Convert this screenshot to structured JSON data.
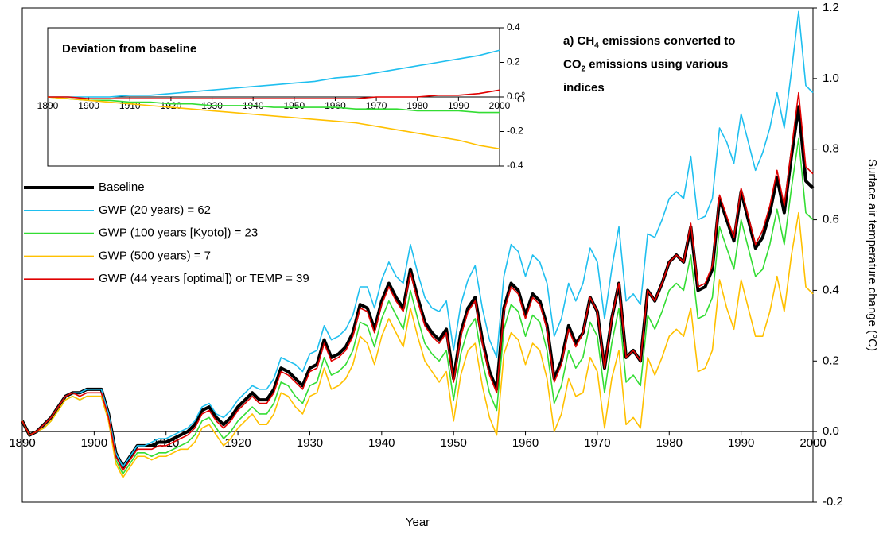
{
  "chart_data": [
    {
      "type": "line",
      "annotation": [
        [
          "a) CH",
          "4",
          " emissions converted to"
        ],
        [
          "CO",
          "2",
          " emissions using various"
        ],
        [
          "indices"
        ]
      ],
      "x_label": "Year",
      "y_label": "Surface air temperature change (°C)",
      "xlim": [
        1890,
        2000
      ],
      "xticks": [
        1890,
        1900,
        1910,
        1920,
        1930,
        1940,
        1950,
        1960,
        1970,
        1980,
        1990,
        2000
      ],
      "ylim": [
        -0.2,
        1.2
      ],
      "yticks": [
        1.2,
        {
          "value": 1,
          "label": "1.0"
        },
        0.8,
        0.6,
        0.4,
        0.2,
        {
          "value": 0,
          "label": "0.0"
        },
        -0.2
      ],
      "x": [
        1890,
        1891,
        1892,
        1893,
        1894,
        1895,
        1896,
        1897,
        1898,
        1899,
        1900,
        1901,
        1902,
        1903,
        1904,
        1905,
        1906,
        1907,
        1908,
        1909,
        1910,
        1911,
        1912,
        1913,
        1914,
        1915,
        1916,
        1917,
        1918,
        1919,
        1920,
        1921,
        1922,
        1923,
        1924,
        1925,
        1926,
        1927,
        1928,
        1929,
        1930,
        1931,
        1932,
        1933,
        1934,
        1935,
        1936,
        1937,
        1938,
        1939,
        1940,
        1941,
        1942,
        1943,
        1944,
        1945,
        1946,
        1947,
        1948,
        1949,
        1950,
        1951,
        1952,
        1953,
        1954,
        1955,
        1956,
        1957,
        1958,
        1959,
        1960,
        1961,
        1962,
        1963,
        1964,
        1965,
        1966,
        1967,
        1968,
        1969,
        1970,
        1971,
        1972,
        1973,
        1974,
        1975,
        1976,
        1977,
        1978,
        1979,
        1980,
        1981,
        1982,
        1983,
        1984,
        1985,
        1986,
        1987,
        1988,
        1989,
        1990,
        1991,
        1992,
        1993,
        1994,
        1995,
        1996,
        1997,
        1998,
        1999,
        2000
      ],
      "series": [
        {
          "name": "Baseline",
          "color": "#000000",
          "values": [
            0.03,
            -0.01,
            0.0,
            0.02,
            0.04,
            0.07,
            0.1,
            0.11,
            0.11,
            0.12,
            0.12,
            0.12,
            0.05,
            -0.06,
            -0.1,
            -0.07,
            -0.04,
            -0.04,
            -0.04,
            -0.03,
            -0.03,
            -0.02,
            -0.01,
            0.0,
            0.02,
            0.06,
            0.07,
            0.04,
            0.02,
            0.04,
            0.07,
            0.09,
            0.11,
            0.09,
            0.09,
            0.12,
            0.18,
            0.17,
            0.15,
            0.13,
            0.18,
            0.19,
            0.26,
            0.21,
            0.22,
            0.24,
            0.28,
            0.36,
            0.35,
            0.29,
            0.37,
            0.42,
            0.38,
            0.35,
            0.46,
            0.38,
            0.31,
            0.28,
            0.26,
            0.29,
            0.15,
            0.28,
            0.35,
            0.38,
            0.26,
            0.17,
            0.12,
            0.35,
            0.42,
            0.4,
            0.33,
            0.39,
            0.37,
            0.3,
            0.15,
            0.2,
            0.3,
            0.25,
            0.28,
            0.38,
            0.34,
            0.18,
            0.32,
            0.42,
            0.21,
            0.23,
            0.2,
            0.4,
            0.37,
            0.42,
            0.48,
            0.5,
            0.48,
            0.58,
            0.4,
            0.41,
            0.46,
            0.66,
            0.6,
            0.54,
            0.68,
            0.6,
            0.52,
            0.55,
            0.62,
            0.72,
            0.62,
            0.78,
            0.92,
            0.71,
            0.69
          ]
        },
        {
          "name": "GWP (20 years) = 62",
          "color": "#1fbfef",
          "values": [
            0.03,
            -0.01,
            0.0,
            0.02,
            0.04,
            0.07,
            0.1,
            0.11,
            0.11,
            0.12,
            0.12,
            0.12,
            0.05,
            -0.06,
            -0.1,
            -0.07,
            -0.04,
            -0.04,
            -0.03,
            -0.02,
            -0.02,
            -0.01,
            0.0,
            0.01,
            0.03,
            0.07,
            0.08,
            0.05,
            0.04,
            0.06,
            0.09,
            0.11,
            0.13,
            0.12,
            0.12,
            0.15,
            0.21,
            0.2,
            0.19,
            0.17,
            0.22,
            0.23,
            0.3,
            0.26,
            0.27,
            0.29,
            0.33,
            0.41,
            0.41,
            0.35,
            0.43,
            0.48,
            0.44,
            0.42,
            0.53,
            0.45,
            0.38,
            0.35,
            0.34,
            0.37,
            0.23,
            0.36,
            0.43,
            0.47,
            0.35,
            0.26,
            0.21,
            0.44,
            0.53,
            0.51,
            0.44,
            0.5,
            0.48,
            0.42,
            0.27,
            0.32,
            0.42,
            0.37,
            0.42,
            0.52,
            0.48,
            0.32,
            0.46,
            0.58,
            0.37,
            0.39,
            0.36,
            0.56,
            0.55,
            0.6,
            0.66,
            0.68,
            0.66,
            0.78,
            0.6,
            0.61,
            0.66,
            0.86,
            0.82,
            0.76,
            0.9,
            0.82,
            0.74,
            0.79,
            0.86,
            0.96,
            0.86,
            1.02,
            1.19,
            0.98,
            0.96
          ]
        },
        {
          "name": "GWP (100 years [Kyoto]) = 23",
          "color": "#33dd33",
          "values": [
            0.03,
            -0.01,
            0.0,
            0.01,
            0.03,
            0.06,
            0.09,
            0.1,
            0.09,
            0.1,
            0.1,
            0.1,
            0.03,
            -0.08,
            -0.12,
            -0.09,
            -0.06,
            -0.06,
            -0.07,
            -0.06,
            -0.06,
            -0.05,
            -0.04,
            -0.03,
            -0.01,
            0.03,
            0.04,
            0.01,
            -0.02,
            0.0,
            0.03,
            0.05,
            0.07,
            0.05,
            0.05,
            0.08,
            0.14,
            0.13,
            0.1,
            0.08,
            0.13,
            0.14,
            0.21,
            0.16,
            0.17,
            0.19,
            0.23,
            0.31,
            0.3,
            0.24,
            0.32,
            0.37,
            0.33,
            0.29,
            0.4,
            0.32,
            0.25,
            0.22,
            0.2,
            0.23,
            0.09,
            0.22,
            0.29,
            0.32,
            0.2,
            0.11,
            0.06,
            0.29,
            0.36,
            0.34,
            0.27,
            0.33,
            0.31,
            0.23,
            0.08,
            0.13,
            0.23,
            0.18,
            0.21,
            0.31,
            0.27,
            0.11,
            0.25,
            0.35,
            0.14,
            0.16,
            0.13,
            0.33,
            0.29,
            0.34,
            0.4,
            0.42,
            0.4,
            0.5,
            0.32,
            0.33,
            0.38,
            0.58,
            0.52,
            0.46,
            0.6,
            0.52,
            0.44,
            0.46,
            0.53,
            0.63,
            0.53,
            0.69,
            0.83,
            0.62,
            0.6
          ]
        },
        {
          "name": "GWP (500 years) = 7",
          "color": "#ffc000",
          "values": [
            0.03,
            -0.01,
            0.0,
            0.01,
            0.03,
            0.06,
            0.09,
            0.1,
            0.09,
            0.1,
            0.1,
            0.1,
            0.03,
            -0.09,
            -0.13,
            -0.1,
            -0.07,
            -0.07,
            -0.08,
            -0.07,
            -0.07,
            -0.06,
            -0.05,
            -0.05,
            -0.03,
            0.01,
            0.02,
            -0.01,
            -0.04,
            -0.02,
            0.01,
            0.03,
            0.05,
            0.02,
            0.02,
            0.05,
            0.11,
            0.1,
            0.07,
            0.05,
            0.1,
            0.11,
            0.18,
            0.12,
            0.13,
            0.15,
            0.19,
            0.27,
            0.25,
            0.19,
            0.27,
            0.32,
            0.28,
            0.24,
            0.35,
            0.27,
            0.2,
            0.17,
            0.14,
            0.17,
            0.03,
            0.16,
            0.23,
            0.25,
            0.13,
            0.04,
            -0.01,
            0.22,
            0.28,
            0.26,
            0.19,
            0.25,
            0.23,
            0.15,
            0.0,
            0.05,
            0.15,
            0.1,
            0.11,
            0.21,
            0.17,
            0.01,
            0.15,
            0.23,
            0.02,
            0.04,
            0.01,
            0.21,
            0.16,
            0.21,
            0.27,
            0.29,
            0.27,
            0.35,
            0.17,
            0.18,
            0.23,
            0.43,
            0.35,
            0.29,
            0.43,
            0.35,
            0.27,
            0.27,
            0.34,
            0.44,
            0.34,
            0.5,
            0.62,
            0.41,
            0.39
          ]
        },
        {
          "name": "GWP (44 years [optimal]) or TEMP = 39",
          "color": "#e00000",
          "values": [
            0.03,
            -0.01,
            0.0,
            0.02,
            0.04,
            0.07,
            0.1,
            0.11,
            0.1,
            0.11,
            0.11,
            0.11,
            0.04,
            -0.07,
            -0.11,
            -0.08,
            -0.05,
            -0.05,
            -0.05,
            -0.04,
            -0.04,
            -0.03,
            -0.02,
            -0.01,
            0.01,
            0.05,
            0.06,
            0.03,
            0.01,
            0.03,
            0.06,
            0.08,
            0.1,
            0.08,
            0.08,
            0.11,
            0.17,
            0.16,
            0.14,
            0.12,
            0.17,
            0.18,
            0.25,
            0.2,
            0.21,
            0.23,
            0.27,
            0.35,
            0.34,
            0.28,
            0.36,
            0.41,
            0.37,
            0.34,
            0.45,
            0.37,
            0.3,
            0.27,
            0.25,
            0.28,
            0.14,
            0.27,
            0.34,
            0.37,
            0.25,
            0.16,
            0.11,
            0.34,
            0.41,
            0.39,
            0.32,
            0.38,
            0.36,
            0.29,
            0.14,
            0.19,
            0.29,
            0.24,
            0.28,
            0.38,
            0.34,
            0.18,
            0.32,
            0.42,
            0.21,
            0.23,
            0.2,
            0.4,
            0.37,
            0.42,
            0.48,
            0.5,
            0.48,
            0.59,
            0.41,
            0.42,
            0.47,
            0.67,
            0.61,
            0.55,
            0.69,
            0.61,
            0.53,
            0.57,
            0.64,
            0.74,
            0.64,
            0.8,
            0.96,
            0.75,
            0.73
          ]
        }
      ]
    },
    {
      "type": "line",
      "title": "Deviation from baseline",
      "y_label": "°C",
      "xlim": [
        1890,
        2000
      ],
      "xticks": [
        1890,
        1900,
        1910,
        1920,
        1930,
        1940,
        1950,
        1960,
        1970,
        1980,
        1990,
        2000
      ],
      "ylim": [
        -0.4,
        0.4
      ],
      "yticks": [
        0.4,
        0.2,
        {
          "value": 0,
          "label": "0.0"
        },
        -0.2,
        -0.4
      ],
      "x": [
        1890,
        1895,
        1900,
        1905,
        1910,
        1915,
        1920,
        1925,
        1930,
        1935,
        1940,
        1945,
        1950,
        1955,
        1960,
        1965,
        1970,
        1975,
        1980,
        1985,
        1990,
        1995,
        2000
      ],
      "series": [
        {
          "color": "#1fbfef",
          "values": [
            0,
            0,
            0,
            0,
            0.01,
            0.01,
            0.02,
            0.03,
            0.04,
            0.05,
            0.06,
            0.07,
            0.08,
            0.09,
            0.11,
            0.12,
            0.14,
            0.16,
            0.18,
            0.2,
            0.22,
            0.24,
            0.27
          ]
        },
        {
          "color": "#33dd33",
          "values": [
            0,
            -0.01,
            -0.02,
            -0.02,
            -0.03,
            -0.03,
            -0.04,
            -0.04,
            -0.05,
            -0.05,
            -0.05,
            -0.06,
            -0.06,
            -0.06,
            -0.06,
            -0.07,
            -0.07,
            -0.07,
            -0.08,
            -0.08,
            -0.08,
            -0.09,
            -0.09
          ]
        },
        {
          "color": "#ffc000",
          "values": [
            0,
            -0.01,
            -0.02,
            -0.03,
            -0.04,
            -0.05,
            -0.06,
            -0.07,
            -0.08,
            -0.09,
            -0.1,
            -0.11,
            -0.12,
            -0.13,
            -0.14,
            -0.15,
            -0.17,
            -0.19,
            -0.21,
            -0.23,
            -0.25,
            -0.28,
            -0.3
          ]
        },
        {
          "color": "#e00000",
          "values": [
            0,
            0,
            -0.01,
            -0.01,
            -0.01,
            -0.01,
            -0.01,
            -0.01,
            -0.01,
            -0.01,
            -0.01,
            -0.01,
            -0.01,
            -0.01,
            -0.01,
            -0.01,
            0,
            0,
            0,
            0.01,
            0.01,
            0.02,
            0.04
          ]
        }
      ]
    }
  ]
}
